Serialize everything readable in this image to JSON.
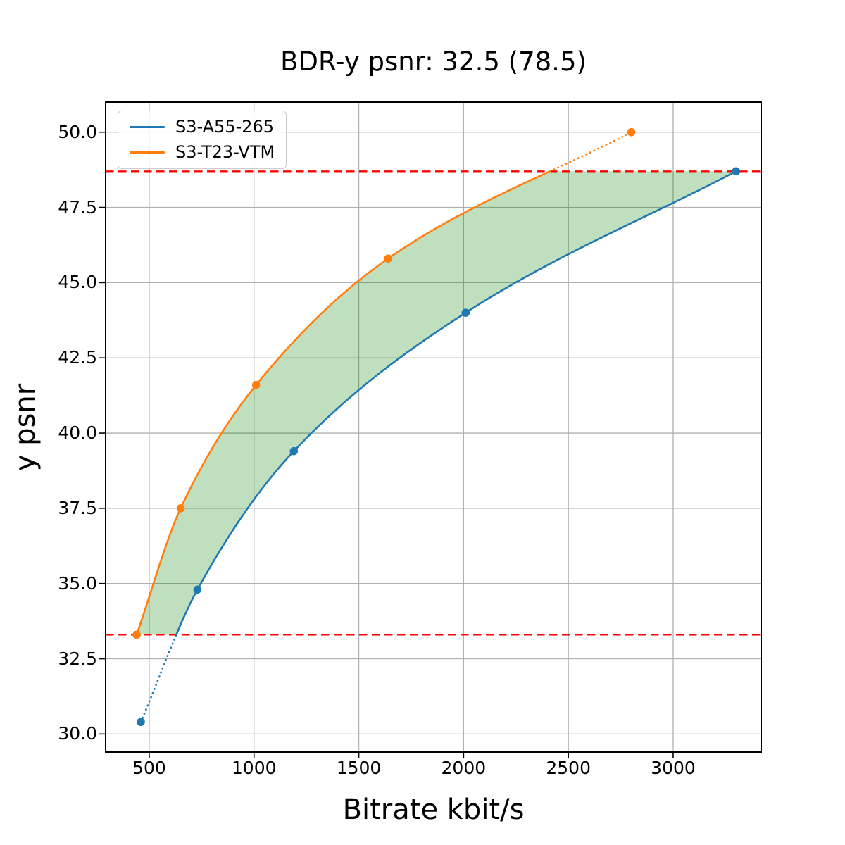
{
  "chart_data": {
    "type": "line",
    "title": "BDR-y psnr: 32.5 (78.5)",
    "xlabel": "Bitrate kbit/s",
    "ylabel": "y psnr",
    "xlim": [
      292,
      3420
    ],
    "ylim": [
      29.4,
      51.0
    ],
    "grid": true,
    "grid_color": "#b0b0b0",
    "axes_edge_color": "#000000",
    "x_ticks": [
      500,
      1000,
      1500,
      2000,
      2500,
      3000
    ],
    "x_tick_labels": [
      "500",
      "1000",
      "1500",
      "2000",
      "2500",
      "3000"
    ],
    "y_ticks": [
      30.0,
      32.5,
      35.0,
      37.5,
      40.0,
      42.5,
      45.0,
      47.5,
      50.0
    ],
    "y_tick_labels": [
      "30.0",
      "32.5",
      "35.0",
      "37.5",
      "40.0",
      "42.5",
      "45.0",
      "47.5",
      "50.0"
    ],
    "legend": {
      "position": "upper-left"
    },
    "series": [
      {
        "name": "S3-A55-265",
        "color": "#1f77b4",
        "x": [
          460,
          730,
          1190,
          2010,
          3300
        ],
        "y": [
          30.4,
          34.8,
          39.4,
          44.0,
          48.7
        ]
      },
      {
        "name": "S3-T23-VTM",
        "color": "#ff7f0e",
        "x": [
          440,
          650,
          1010,
          1640,
          2800
        ],
        "y": [
          33.3,
          37.5,
          41.6,
          45.8,
          50.0
        ]
      }
    ],
    "reference_lines": [
      {
        "y": 33.3,
        "color": "#ff0000",
        "style": "dashed"
      },
      {
        "y": 48.7,
        "color": "#ff0000",
        "style": "dashed"
      }
    ],
    "shaded_region": {
      "description": "area between the two curves clipped to the overlapping psnr range",
      "y_range": [
        33.3,
        48.7
      ],
      "color": "#008000",
      "opacity": 0.25
    }
  }
}
